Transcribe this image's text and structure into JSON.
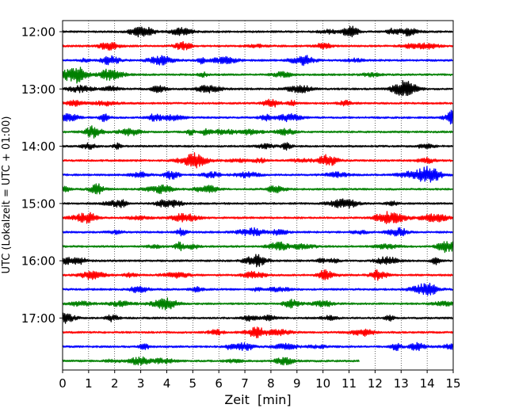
{
  "chart_data": {
    "type": "line",
    "title": "",
    "xlabel": "Zeit  [min]",
    "ylabel": "UTC (Lokalzeit = UTC + 01:00)",
    "xlim": [
      0,
      15
    ],
    "x_ticks": [
      "0",
      "1",
      "2",
      "3",
      "4",
      "5",
      "6",
      "7",
      "8",
      "9",
      "10",
      "11",
      "12",
      "13",
      "14",
      "15"
    ],
    "y_ticks": [
      "12:00",
      "13:00",
      "14:00",
      "15:00",
      "16:00",
      "17:00"
    ],
    "grid": "vertical dotted lines at each minute",
    "legend": "none",
    "trace_interval_minutes": 15,
    "start_time_utc": "12:00",
    "line_colors": [
      "#000000",
      "#ff0000",
      "#0000ff",
      "#008000"
    ],
    "traces": [
      {
        "start": "12:00",
        "color": "#000000",
        "end_minute": 15
      },
      {
        "start": "12:15",
        "color": "#ff0000",
        "end_minute": 15
      },
      {
        "start": "12:30",
        "color": "#0000ff",
        "end_minute": 15
      },
      {
        "start": "12:45",
        "color": "#008000",
        "end_minute": 15
      },
      {
        "start": "13:00",
        "color": "#000000",
        "end_minute": 15
      },
      {
        "start": "13:15",
        "color": "#ff0000",
        "end_minute": 15
      },
      {
        "start": "13:30",
        "color": "#0000ff",
        "end_minute": 15
      },
      {
        "start": "13:45",
        "color": "#008000",
        "end_minute": 15
      },
      {
        "start": "14:00",
        "color": "#000000",
        "end_minute": 15
      },
      {
        "start": "14:15",
        "color": "#ff0000",
        "end_minute": 15
      },
      {
        "start": "14:30",
        "color": "#0000ff",
        "end_minute": 15
      },
      {
        "start": "14:45",
        "color": "#008000",
        "end_minute": 15
      },
      {
        "start": "15:00",
        "color": "#000000",
        "end_minute": 15
      },
      {
        "start": "15:15",
        "color": "#ff0000",
        "end_minute": 15
      },
      {
        "start": "15:30",
        "color": "#0000ff",
        "end_minute": 15
      },
      {
        "start": "15:45",
        "color": "#008000",
        "end_minute": 15
      },
      {
        "start": "16:00",
        "color": "#000000",
        "end_minute": 15
      },
      {
        "start": "16:15",
        "color": "#ff0000",
        "end_minute": 15
      },
      {
        "start": "16:30",
        "color": "#0000ff",
        "end_minute": 15
      },
      {
        "start": "16:45",
        "color": "#008000",
        "end_minute": 15
      },
      {
        "start": "17:00",
        "color": "#000000",
        "end_minute": 15
      },
      {
        "start": "17:15",
        "color": "#ff0000",
        "end_minute": 15
      },
      {
        "start": "17:30",
        "color": "#0000ff",
        "end_minute": 15
      },
      {
        "start": "17:45",
        "color": "#008000",
        "end_minute": 11.4
      }
    ]
  }
}
